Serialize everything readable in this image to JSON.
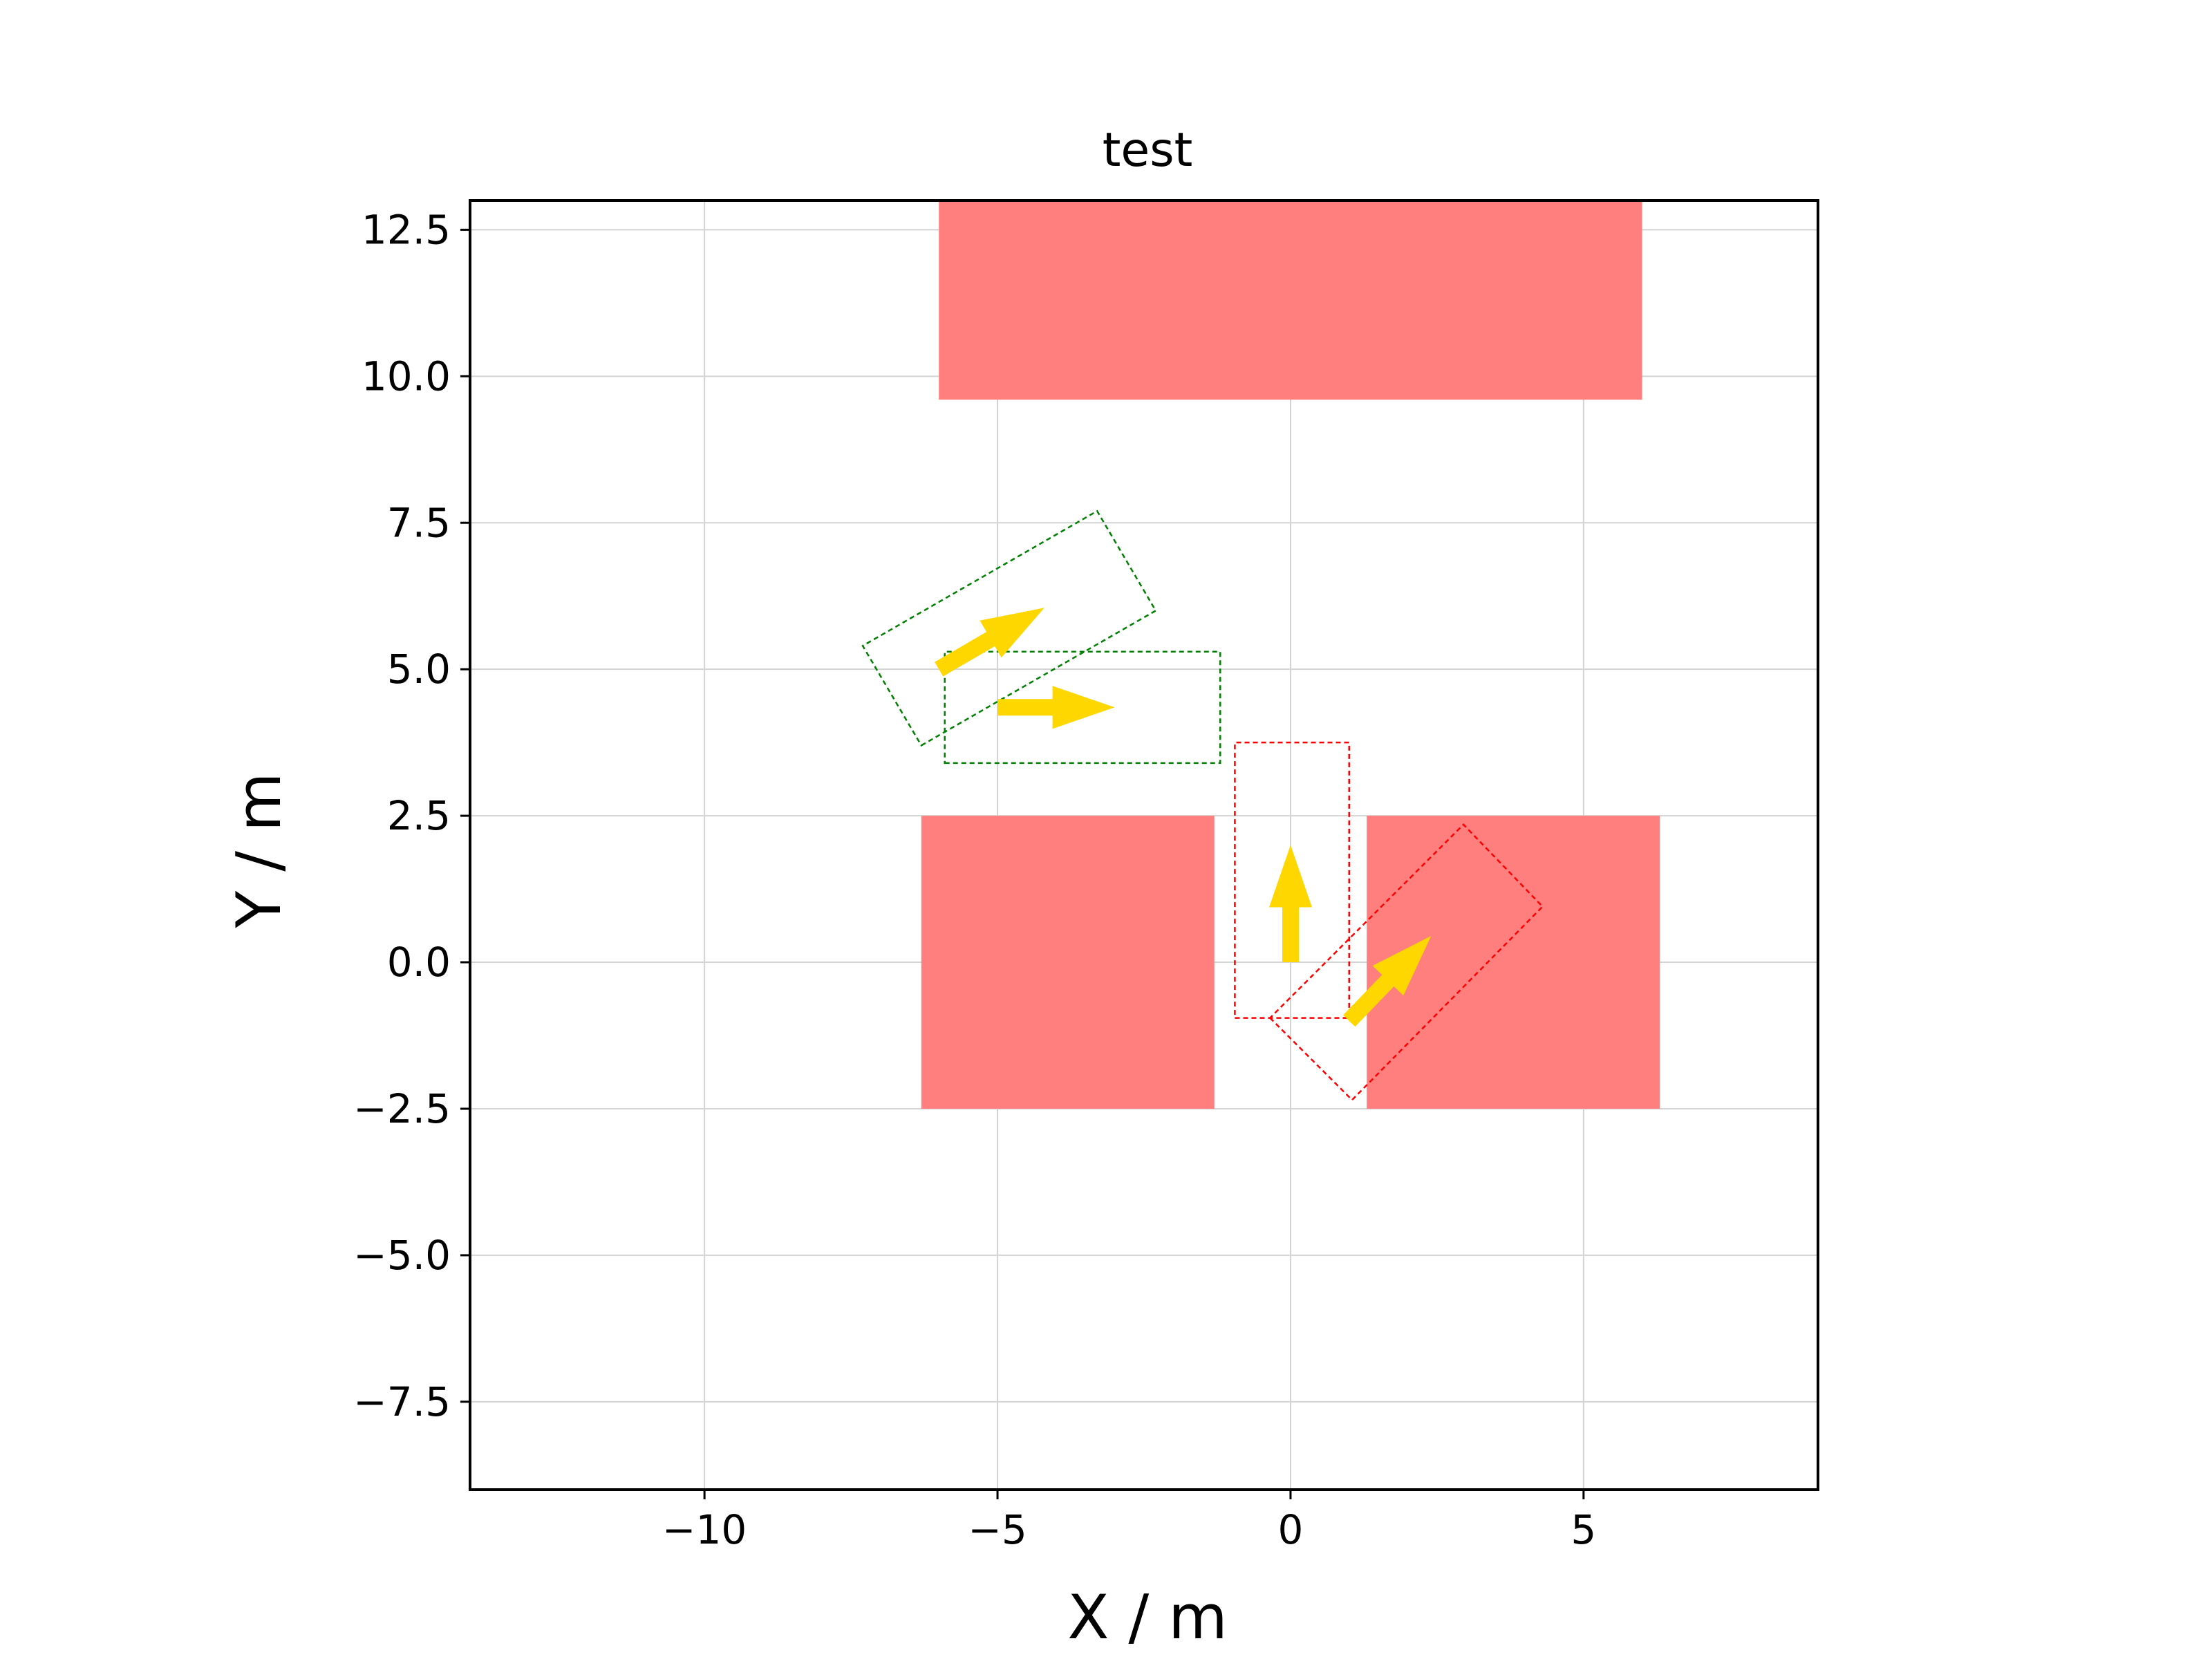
{
  "chart_data": {
    "type": "scatter",
    "title": "test",
    "xlabel": "X / m",
    "ylabel": "Y / m",
    "xlim": [
      -14,
      9
    ],
    "ylim": [
      -9,
      13
    ],
    "grid": true,
    "aspect": "equal",
    "x_ticks": [
      -10,
      -5,
      0,
      5
    ],
    "x_tick_labels": [
      "−10",
      "−5",
      "0",
      "5"
    ],
    "y_ticks": [
      -7.5,
      -5.0,
      -2.5,
      0.0,
      2.5,
      5.0,
      7.5,
      10.0,
      12.5
    ],
    "y_tick_labels": [
      "−7.5",
      "−5.0",
      "−2.5",
      "0.0",
      "2.5",
      "5.0",
      "7.5",
      "10.0",
      "12.5"
    ],
    "obstacles": [
      {
        "name": "obstacle-top",
        "x0": -6.0,
        "x1": 6.0,
        "y0": 9.6,
        "y1": 13.0
      },
      {
        "name": "obstacle-bottom-left",
        "x0": -6.3,
        "x1": -1.3,
        "y0": -2.5,
        "y1": 2.5
      },
      {
        "name": "obstacle-bottom-right",
        "x0": 1.3,
        "x1": 6.3,
        "y0": -2.5,
        "y1": 2.5
      }
    ],
    "footprints": [
      {
        "name": "goal-footprint-rotated",
        "color": "#008000",
        "corners": [
          [
            -6.3,
            3.7
          ],
          [
            -2.3,
            6.0
          ],
          [
            -3.3,
            7.7
          ],
          [
            -7.3,
            5.4
          ]
        ]
      },
      {
        "name": "goal-footprint-axis",
        "color": "#008000",
        "corners": [
          [
            -5.9,
            3.4
          ],
          [
            -1.2,
            3.4
          ],
          [
            -1.2,
            5.3
          ],
          [
            -5.9,
            5.3
          ]
        ]
      },
      {
        "name": "start-footprint-vertical",
        "color": "#ff0000",
        "corners": [
          [
            -0.95,
            -0.95
          ],
          [
            1.0,
            -0.95
          ],
          [
            1.0,
            3.75
          ],
          [
            -0.95,
            3.75
          ]
        ]
      },
      {
        "name": "start-footprint-rotated",
        "color": "#ff0000",
        "corners": [
          [
            -0.35,
            -0.95
          ],
          [
            1.05,
            -2.35
          ],
          [
            4.3,
            0.95
          ],
          [
            2.95,
            2.35
          ]
        ]
      }
    ],
    "arrows": [
      {
        "name": "heading-arrow-goal-rotated",
        "x": -6.0,
        "y": 5.0,
        "dx": 1.8,
        "dy": 1.05
      },
      {
        "name": "heading-arrow-goal-axis",
        "x": -5.0,
        "y": 4.35,
        "dx": 2.0,
        "dy": 0.0
      },
      {
        "name": "heading-arrow-start-vertical",
        "x": 0.0,
        "y": 0.0,
        "dx": 0.0,
        "dy": 2.0
      },
      {
        "name": "heading-arrow-start-rotated",
        "x": 1.0,
        "y": -1.0,
        "dx": 1.4,
        "dy": 1.45
      }
    ],
    "colors": {
      "obstacle": "#ff7f7f",
      "arrow": "#ffd700",
      "grid": "#d3d3d3",
      "axes": "#000000"
    }
  }
}
